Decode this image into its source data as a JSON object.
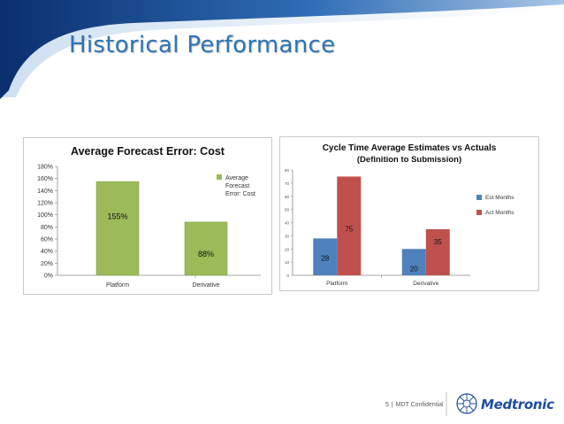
{
  "slide": {
    "title": "Historical Performance",
    "footer": {
      "page": "5",
      "separator": "|",
      "text": "MDT Confidential"
    },
    "logo_text": "Medtronic"
  },
  "colors": {
    "title_blue": "#2e74b5",
    "header_blue": "#1f4e9a",
    "green": "#9bbb59",
    "blue": "#4f81bd",
    "red": "#c0504d"
  },
  "chart_data": [
    {
      "type": "bar",
      "title": "Average Forecast Error: Cost",
      "categories": [
        "Platform",
        "Derivative"
      ],
      "series": [
        {
          "name": "Average Forecast Error: Cost",
          "values": [
            155,
            88
          ],
          "color": "#9bbb59"
        }
      ],
      "data_labels": [
        "155%",
        "88%"
      ],
      "y_ticks": [
        "0%",
        "20%",
        "40%",
        "60%",
        "80%",
        "100%",
        "120%",
        "140%",
        "160%",
        "180%"
      ],
      "ylim": [
        0,
        180
      ],
      "legend_lines": [
        "Average",
        "Forecast",
        "Error: Cost"
      ],
      "legend_position": "top-right",
      "grid": false,
      "xlabel": "",
      "ylabel": ""
    },
    {
      "type": "bar",
      "title": "Cycle Time Average Estimates vs Actuals",
      "subtitle": "(Definition to Submission)",
      "categories": [
        "Platform",
        "Derivative"
      ],
      "series": [
        {
          "name": "Est Months",
          "values": [
            28,
            20
          ],
          "color": "#4f81bd"
        },
        {
          "name": "Act Months",
          "values": [
            75,
            35
          ],
          "color": "#c0504d"
        }
      ],
      "y_ticks": [
        "0",
        "10",
        "20",
        "30",
        "40",
        "50",
        "60",
        "70",
        "80"
      ],
      "ylim": [
        0,
        80
      ],
      "legend_position": "right",
      "grid": false,
      "xlabel": "",
      "ylabel": ""
    }
  ]
}
